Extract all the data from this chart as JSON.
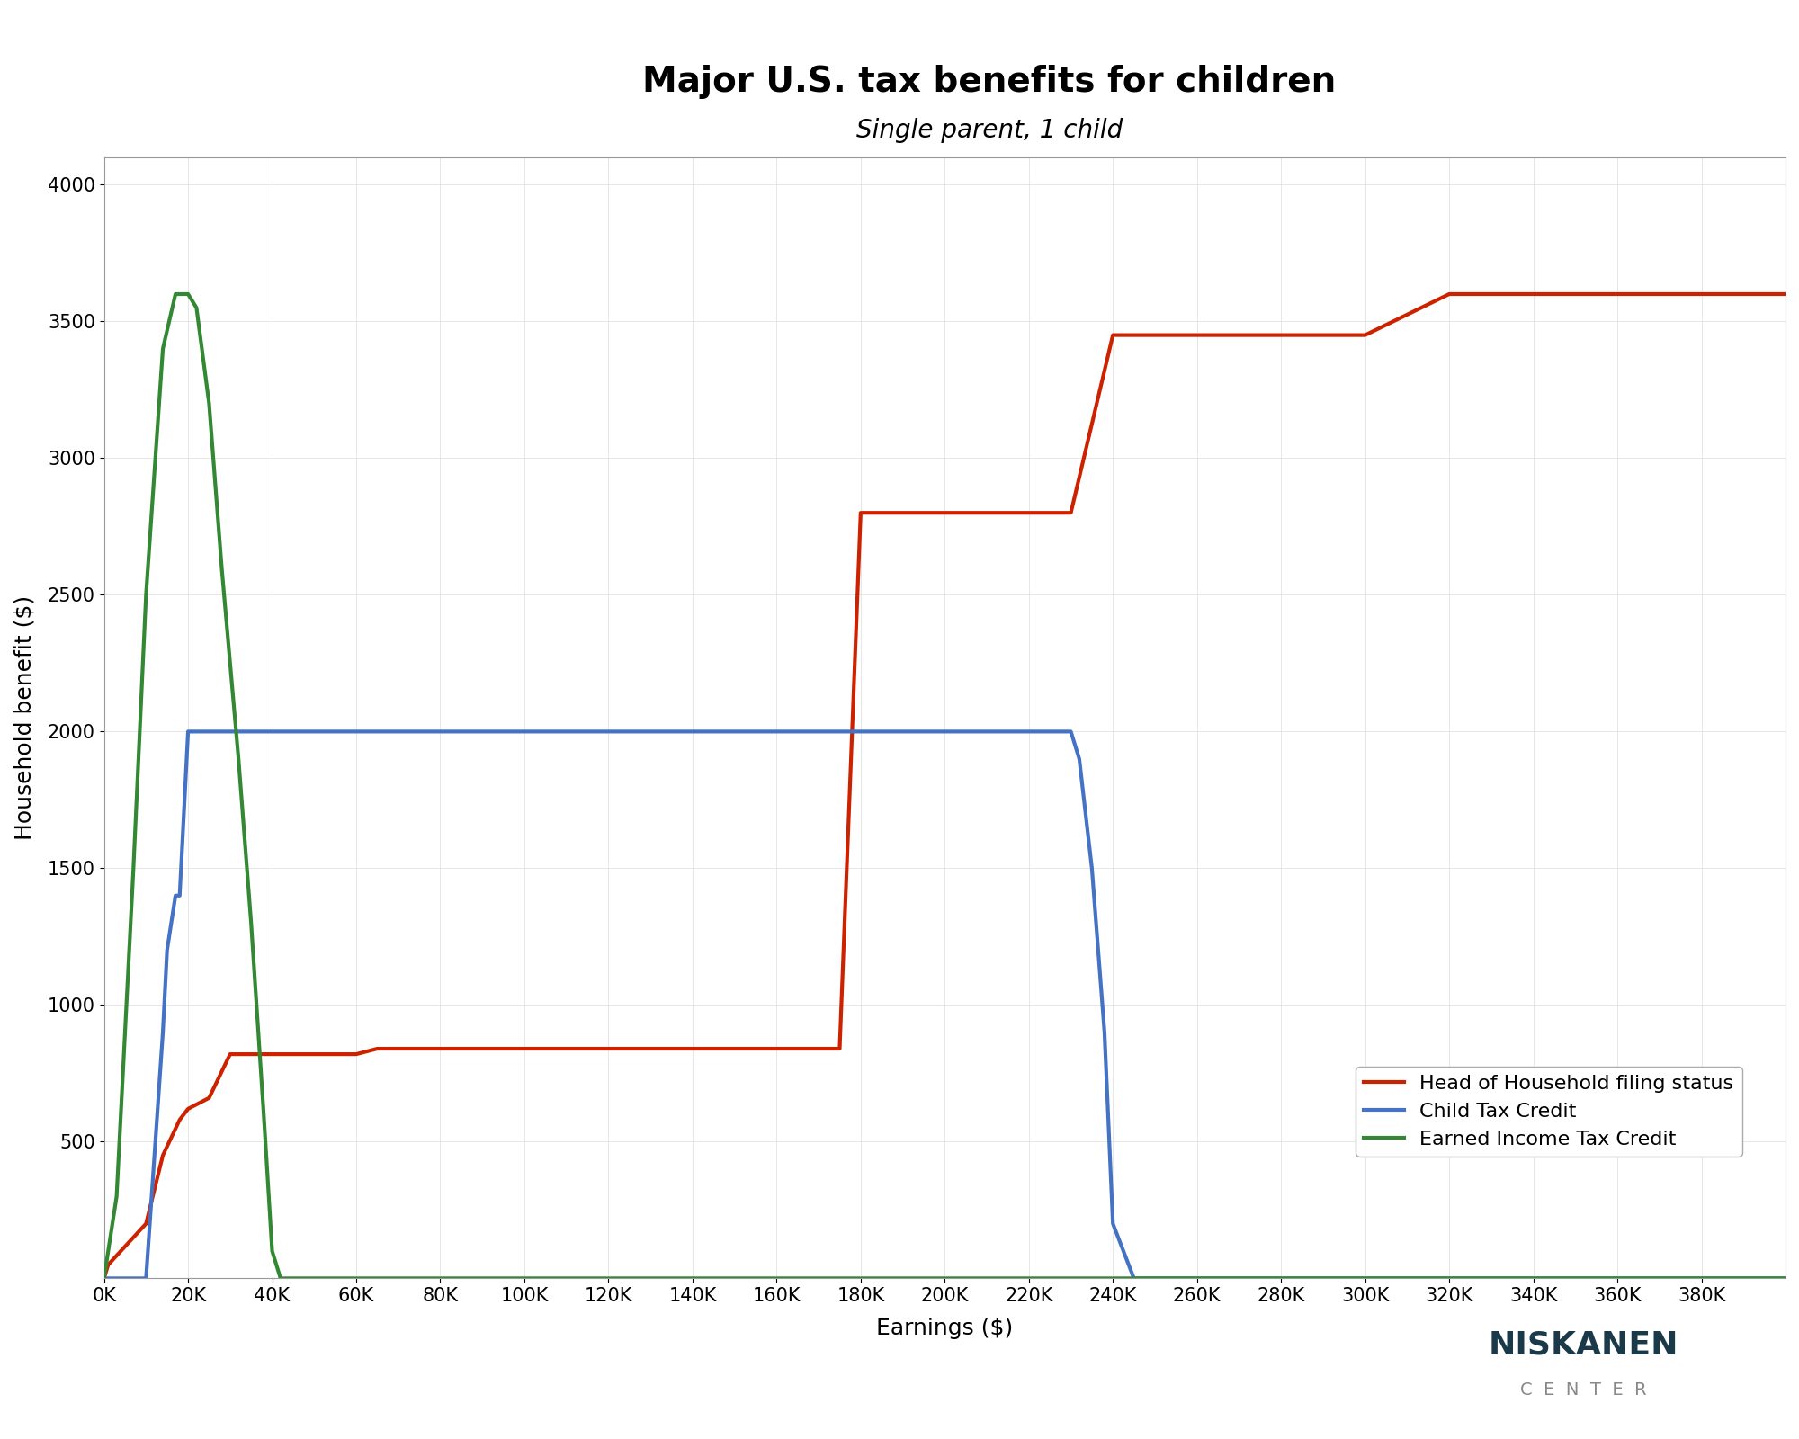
{
  "title": "Major U.S. tax benefits for children",
  "subtitle": "Single parent, 1 child",
  "xlabel": "Earnings ($)",
  "ylabel": "Household benefit ($)",
  "xlim": [
    0,
    400000
  ],
  "ylim": [
    0,
    4100
  ],
  "background_color": "#ffffff",
  "title_fontsize": 28,
  "subtitle_fontsize": 20,
  "axis_label_fontsize": 18,
  "tick_fontsize": 15,
  "legend_fontsize": 16,
  "line_width": 3.0,
  "red_line": {
    "label": "Head of Household filing status",
    "color": "#cc2200",
    "x": [
      0,
      1000,
      10000,
      14000,
      18000,
      20000,
      25000,
      30000,
      35000,
      40000,
      43000,
      48000,
      50000,
      55000,
      57000,
      60000,
      65000,
      70000,
      75000,
      80000,
      90000,
      100000,
      105000,
      110000,
      120000,
      130000,
      140000,
      150000,
      160000,
      170000,
      175000,
      180000,
      182000,
      185000,
      190000,
      200000,
      205000,
      210000,
      215000,
      220000,
      230000,
      240000,
      260000,
      280000,
      300000,
      320000,
      340000,
      360000,
      380000,
      400000
    ],
    "y": [
      0,
      50,
      200,
      450,
      580,
      620,
      660,
      820,
      820,
      820,
      820,
      820,
      820,
      820,
      820,
      820,
      840,
      840,
      840,
      840,
      840,
      840,
      840,
      840,
      840,
      840,
      840,
      840,
      840,
      840,
      840,
      2800,
      2800,
      2800,
      2800,
      2800,
      2800,
      2800,
      2800,
      2800,
      2800,
      3450,
      3450,
      3450,
      3450,
      3600,
      3600,
      3600,
      3600,
      3600
    ]
  },
  "blue_line": {
    "label": "Child Tax Credit",
    "color": "#4472C4",
    "x": [
      0,
      10000,
      14000,
      15000,
      17000,
      18000,
      20000,
      25000,
      30000,
      40000,
      60000,
      80000,
      100000,
      120000,
      140000,
      160000,
      180000,
      200000,
      220000,
      230000,
      232000,
      235000,
      238000,
      240000,
      245000,
      250000,
      260000,
      280000,
      300000,
      380000,
      400000
    ],
    "y": [
      0,
      0,
      900,
      1200,
      1400,
      1400,
      2000,
      2000,
      2000,
      2000,
      2000,
      2000,
      2000,
      2000,
      2000,
      2000,
      2000,
      2000,
      2000,
      2000,
      1900,
      1500,
      900,
      200,
      0,
      0,
      0,
      0,
      0,
      0,
      0
    ]
  },
  "green_line": {
    "label": "Earned Income Tax Credit",
    "color": "#338833",
    "x": [
      0,
      3000,
      7000,
      10000,
      14000,
      17000,
      20000,
      22000,
      25000,
      28000,
      32000,
      35000,
      38000,
      40000,
      42000,
      43000,
      50000,
      60000,
      80000,
      100000,
      200000,
      400000
    ],
    "y": [
      0,
      300,
      1500,
      2500,
      3400,
      3600,
      3600,
      3550,
      3200,
      2600,
      1900,
      1300,
      600,
      100,
      0,
      0,
      0,
      0,
      0,
      0,
      0,
      0
    ]
  },
  "logo_text_niskanen": "NISKANEN",
  "logo_text_center": "C  E  N  T  E  R"
}
